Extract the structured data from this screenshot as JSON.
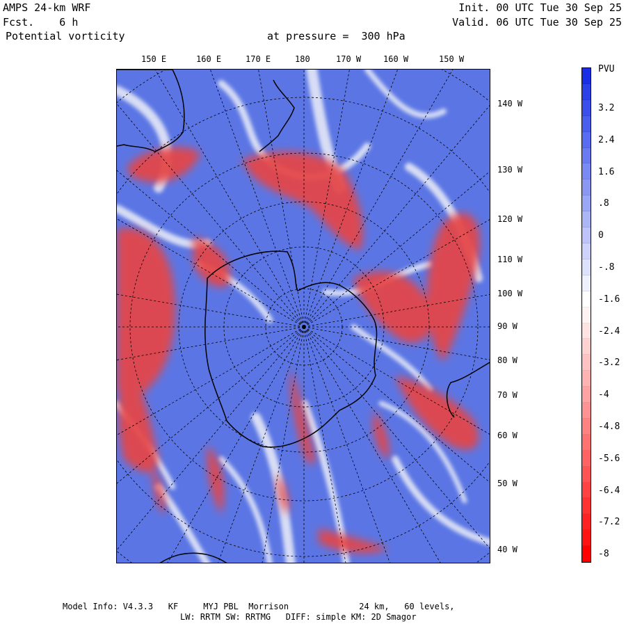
{
  "header": {
    "left_line1": "AMPS 24-km WRF",
    "left_line2": "Fcst.    6 h",
    "left_line3": "Potential vorticity",
    "center_line3": "at pressure =  300 hPa",
    "right_line1": "Init. 00 UTC Tue 30 Sep 25",
    "right_line2": "Valid. 06 UTC Tue 30 Sep 25"
  },
  "top_labels": [
    "150 E",
    "160 E",
    "170 E",
    "180",
    "170 W",
    "160 W",
    "150 W"
  ],
  "right_labels": [
    "140 W",
    "130 W",
    "120 W",
    "110 W",
    "100 W",
    "90 W",
    "80 W",
    "70 W",
    "60 W",
    "50 W",
    "40 W"
  ],
  "colorbar": {
    "unit": "PVU",
    "labels": [
      "3.2",
      "2.4",
      "1.6",
      ".8",
      "0",
      "-.8",
      "-1.6",
      "-2.4",
      "-3.2",
      "-4",
      "-4.8",
      "-5.6",
      "-6.4",
      "-7.2",
      "-8"
    ],
    "colors": [
      "#1a2ee6",
      "#2c40e8",
      "#3a4feb",
      "#4a5eed",
      "#5a6cef",
      "#6a7bf1",
      "#7a8af3",
      "#8a98f4",
      "#9aa7f6",
      "#abb6f7",
      "#bcc4f9",
      "#cdd3fa",
      "#dde2fc",
      "#eef0fd",
      "#ffffff",
      "#fff2f2",
      "#ffe2e2",
      "#ffd2d2",
      "#ffc2c2",
      "#ffb2b2",
      "#ffa2a2",
      "#ff9292",
      "#ff8282",
      "#ff7272",
      "#ff6262",
      "#ff5252",
      "#ff4242",
      "#ff3232",
      "#ff2222",
      "#ff1212",
      "#ff0000"
    ]
  },
  "footer": {
    "line1": "Model Info: V4.3.3   KF     MYJ PBL  Morrison              24 km,   60 levels,",
    "line2": "LW: RRTM SW: RRTMG   DIFF: simple KM: 2D Smagor"
  },
  "map": {
    "ocean_color": "#5a78e6",
    "pv_negative_color": "#e8484a",
    "white_filament_color": "#f0f0f6"
  }
}
